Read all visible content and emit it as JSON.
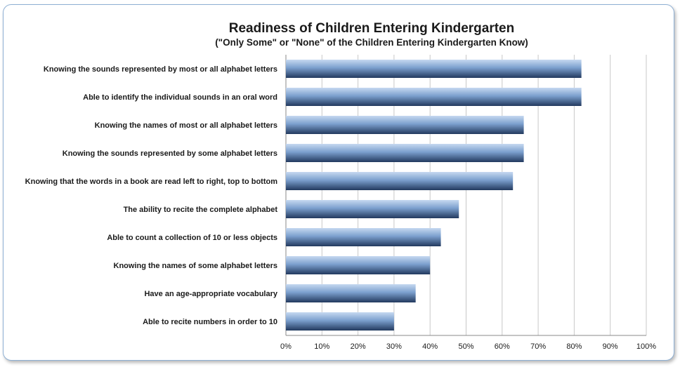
{
  "chart_data": {
    "type": "bar",
    "orientation": "horizontal",
    "title": "Readiness of Children Entering Kindergarten",
    "subtitle": "(\"Only Some\" or \"None\" of the Children Entering Kindergarten Know)",
    "categories": [
      "Knowing the sounds represented by most or all alphabet letters",
      "Able to identify the individual sounds in an oral word",
      "Knowing the names of most or all alphabet letters",
      "Knowing the sounds represented by some alphabet letters",
      "Knowing that the words in a book are read left to right, top to bottom",
      "The ability to recite the complete alphabet",
      "Able to count a collection of 10 or less objects",
      "Knowing the names of some alphabet letters",
      "Have an age-appropriate vocabulary",
      "Able to recite numbers in order to 10"
    ],
    "values": [
      82,
      82,
      66,
      66,
      63,
      48,
      43,
      40,
      36,
      30
    ],
    "xlim": [
      0,
      100
    ],
    "xticks": [
      "0%",
      "10%",
      "20%",
      "30%",
      "40%",
      "50%",
      "60%",
      "70%",
      "80%",
      "90%",
      "100%"
    ],
    "grid": true,
    "legend": "none",
    "colors": {
      "bar_light": "#c6d9f0",
      "bar_mid": "#5b7fb5",
      "bar_dark": "#22395e",
      "grid": "#c8c8c8",
      "axis": "#888888"
    }
  }
}
